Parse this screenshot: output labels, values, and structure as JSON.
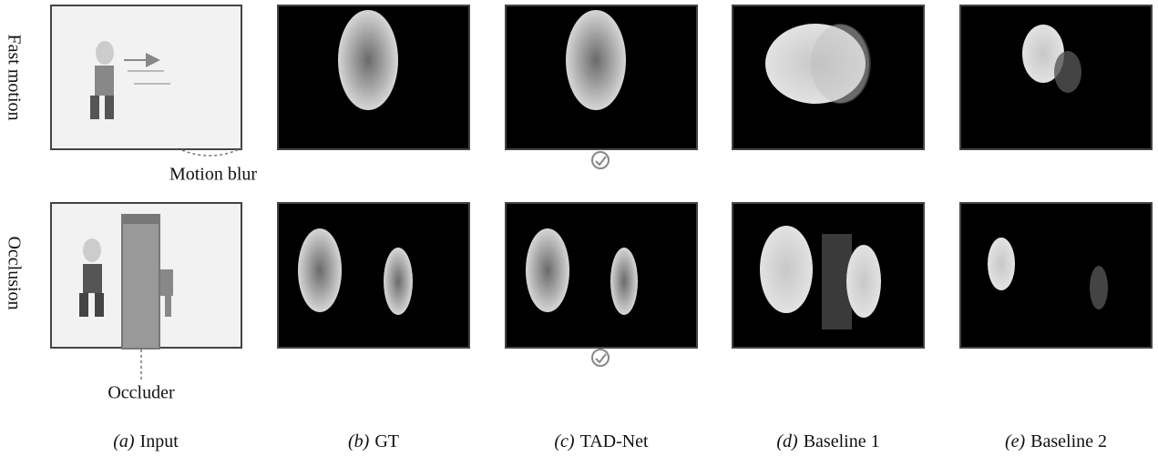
{
  "rows": [
    {
      "label": "Fast motion"
    },
    {
      "label": "Occlusion"
    }
  ],
  "annotations": {
    "motion_blur": "Motion blur",
    "occluder": "Occluder"
  },
  "columns": [
    {
      "tag": "(a)",
      "label": "Input"
    },
    {
      "tag": "(b)",
      "label": "GT"
    },
    {
      "tag": "(c)",
      "label": "TAD-Net"
    },
    {
      "tag": "(d)",
      "label": "Baseline 1"
    },
    {
      "tag": "(e)",
      "label": "Baseline 2"
    }
  ]
}
